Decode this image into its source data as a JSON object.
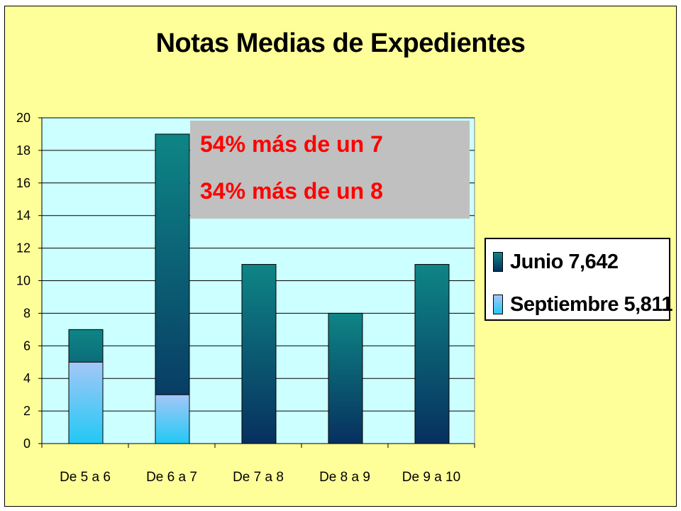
{
  "chart_data": {
    "type": "bar",
    "title": "Notas Medias de Expedientes",
    "categories": [
      "De 5 a 6",
      "De 6 a 7",
      "De 7 a 8",
      "De 8 a 9",
      "De 9 a 10"
    ],
    "series": [
      {
        "name": "Junio 7,642",
        "values": [
          7,
          19,
          11,
          8,
          11
        ],
        "color": "#0e6f78"
      },
      {
        "name": "Septiembre 5,811",
        "values": [
          5,
          3,
          0,
          0,
          0
        ],
        "color": "#99ccff"
      }
    ],
    "overlap": "superimposed",
    "yticks": [
      "0",
      "2",
      "4",
      "6",
      "8",
      "10",
      "12",
      "14",
      "16",
      "18",
      "20"
    ],
    "ylim": [
      0,
      20
    ],
    "grid": true,
    "legend_position": "right",
    "annotations": [
      "54% más de un 7",
      "34% más de un 8"
    ],
    "plot_background": "#ccffff",
    "page_background": "#ffff99"
  }
}
